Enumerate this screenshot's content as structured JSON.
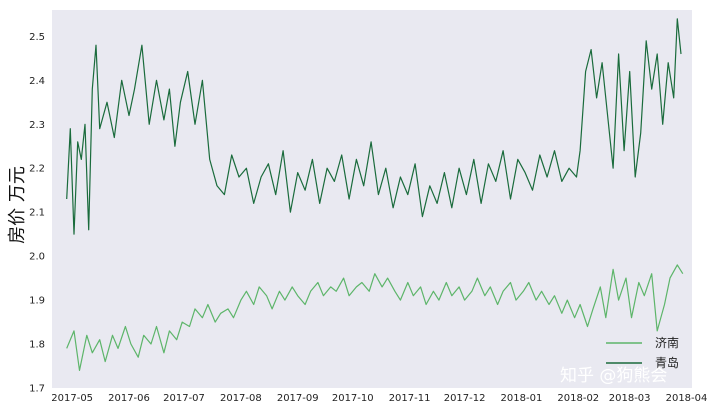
{
  "chart_data": {
    "type": "line",
    "ylabel": "房价 万元",
    "ylim": [
      1.7,
      2.56
    ],
    "yticks": [
      "1.7",
      "1.8",
      "1.9",
      "2.0",
      "2.1",
      "2.2",
      "2.3",
      "2.4",
      "2.5"
    ],
    "xlim": [
      "2017-04-20",
      "2018-04-04"
    ],
    "xticks": [
      "2017-05",
      "2017-06",
      "2017-07",
      "2017-08",
      "2017-09",
      "2017-10",
      "2017-11",
      "2017-12",
      "2018-01",
      "2018-02",
      "2018-03",
      "2018-04"
    ],
    "grid": false,
    "legend_position": "bottom-right",
    "colors": {
      "background": "#e9e9f1",
      "jinan": "#5db56a",
      "qingdao": "#1a6b3c"
    },
    "series": [
      {
        "name": "济南",
        "color": "#5db56a",
        "x": [
          "2017-04-28",
          "2017-05-02",
          "2017-05-05",
          "2017-05-09",
          "2017-05-12",
          "2017-05-16",
          "2017-05-19",
          "2017-05-23",
          "2017-05-26",
          "2017-05-30",
          "2017-06-02",
          "2017-06-06",
          "2017-06-09",
          "2017-06-13",
          "2017-06-16",
          "2017-06-20",
          "2017-06-23",
          "2017-06-27",
          "2017-06-30",
          "2017-07-04",
          "2017-07-07",
          "2017-07-11",
          "2017-07-14",
          "2017-07-18",
          "2017-07-21",
          "2017-07-25",
          "2017-07-28",
          "2017-08-01",
          "2017-08-04",
          "2017-08-08",
          "2017-08-11",
          "2017-08-15",
          "2017-08-18",
          "2017-08-22",
          "2017-08-25",
          "2017-08-29",
          "2017-09-01",
          "2017-09-05",
          "2017-09-08",
          "2017-09-12",
          "2017-09-15",
          "2017-09-19",
          "2017-09-22",
          "2017-09-26",
          "2017-09-29",
          "2017-10-03",
          "2017-10-06",
          "2017-10-10",
          "2017-10-13",
          "2017-10-17",
          "2017-10-20",
          "2017-10-24",
          "2017-10-27",
          "2017-10-31",
          "2017-11-03",
          "2017-11-07",
          "2017-11-10",
          "2017-11-14",
          "2017-11-17",
          "2017-11-21",
          "2017-11-24",
          "2017-11-28",
          "2017-12-01",
          "2017-12-05",
          "2017-12-08",
          "2017-12-12",
          "2017-12-15",
          "2017-12-19",
          "2017-12-22",
          "2017-12-26",
          "2017-12-29",
          "2018-01-02",
          "2018-01-05",
          "2018-01-09",
          "2018-01-12",
          "2018-01-16",
          "2018-01-19",
          "2018-01-23",
          "2018-01-26",
          "2018-01-30",
          "2018-02-02",
          "2018-02-06",
          "2018-02-09",
          "2018-02-13",
          "2018-02-16",
          "2018-02-20",
          "2018-02-23",
          "2018-02-27",
          "2018-03-02",
          "2018-03-06",
          "2018-03-09",
          "2018-03-13",
          "2018-03-16",
          "2018-03-20",
          "2018-03-23",
          "2018-03-27",
          "2018-03-30"
        ],
        "values": [
          1.79,
          1.83,
          1.74,
          1.82,
          1.78,
          1.81,
          1.76,
          1.82,
          1.79,
          1.84,
          1.8,
          1.77,
          1.82,
          1.8,
          1.84,
          1.78,
          1.83,
          1.81,
          1.85,
          1.84,
          1.88,
          1.86,
          1.89,
          1.85,
          1.87,
          1.88,
          1.86,
          1.9,
          1.92,
          1.89,
          1.93,
          1.91,
          1.88,
          1.92,
          1.9,
          1.93,
          1.91,
          1.89,
          1.92,
          1.94,
          1.91,
          1.93,
          1.92,
          1.95,
          1.91,
          1.93,
          1.94,
          1.92,
          1.96,
          1.93,
          1.95,
          1.92,
          1.9,
          1.94,
          1.91,
          1.93,
          1.89,
          1.92,
          1.9,
          1.94,
          1.91,
          1.93,
          1.9,
          1.92,
          1.95,
          1.91,
          1.93,
          1.89,
          1.92,
          1.94,
          1.9,
          1.92,
          1.94,
          1.9,
          1.92,
          1.89,
          1.91,
          1.87,
          1.9,
          1.86,
          1.89,
          1.84,
          1.88,
          1.93,
          1.86,
          1.97,
          1.9,
          1.95,
          1.86,
          1.94,
          1.91,
          1.96,
          1.83,
          1.89,
          1.95,
          1.98,
          1.96
        ]
      },
      {
        "name": "青岛",
        "color": "#1a6b3c",
        "x": [
          "2017-04-28",
          "2017-04-30",
          "2017-05-02",
          "2017-05-04",
          "2017-05-06",
          "2017-05-08",
          "2017-05-10",
          "2017-05-12",
          "2017-05-14",
          "2017-05-16",
          "2017-05-20",
          "2017-05-24",
          "2017-05-28",
          "2017-06-01",
          "2017-06-04",
          "2017-06-08",
          "2017-06-12",
          "2017-06-16",
          "2017-06-20",
          "2017-06-23",
          "2017-06-26",
          "2017-06-29",
          "2017-07-03",
          "2017-07-07",
          "2017-07-11",
          "2017-07-15",
          "2017-07-19",
          "2017-07-23",
          "2017-07-27",
          "2017-07-31",
          "2017-08-04",
          "2017-08-08",
          "2017-08-12",
          "2017-08-16",
          "2017-08-20",
          "2017-08-24",
          "2017-08-28",
          "2017-09-01",
          "2017-09-05",
          "2017-09-09",
          "2017-09-13",
          "2017-09-17",
          "2017-09-21",
          "2017-09-25",
          "2017-09-29",
          "2017-10-03",
          "2017-10-07",
          "2017-10-11",
          "2017-10-15",
          "2017-10-19",
          "2017-10-23",
          "2017-10-27",
          "2017-10-31",
          "2017-11-04",
          "2017-11-08",
          "2017-11-12",
          "2017-11-16",
          "2017-11-20",
          "2017-11-24",
          "2017-11-28",
          "2017-12-02",
          "2017-12-06",
          "2017-12-10",
          "2017-12-14",
          "2017-12-18",
          "2017-12-22",
          "2017-12-26",
          "2017-12-30",
          "2018-01-03",
          "2018-01-07",
          "2018-01-11",
          "2018-01-15",
          "2018-01-19",
          "2018-01-23",
          "2018-01-27",
          "2018-01-31",
          "2018-02-02",
          "2018-02-05",
          "2018-02-08",
          "2018-02-11",
          "2018-02-14",
          "2018-02-17",
          "2018-02-20",
          "2018-02-23",
          "2018-02-26",
          "2018-03-01",
          "2018-03-04",
          "2018-03-07",
          "2018-03-10",
          "2018-03-13",
          "2018-03-16",
          "2018-03-19",
          "2018-03-22",
          "2018-03-25",
          "2018-03-27",
          "2018-03-29"
        ],
        "values": [
          2.13,
          2.29,
          2.05,
          2.26,
          2.22,
          2.3,
          2.06,
          2.38,
          2.48,
          2.29,
          2.35,
          2.27,
          2.4,
          2.32,
          2.38,
          2.48,
          2.3,
          2.4,
          2.31,
          2.38,
          2.25,
          2.35,
          2.42,
          2.3,
          2.4,
          2.22,
          2.16,
          2.14,
          2.23,
          2.18,
          2.2,
          2.12,
          2.18,
          2.21,
          2.14,
          2.24,
          2.1,
          2.19,
          2.15,
          2.22,
          2.12,
          2.2,
          2.17,
          2.23,
          2.13,
          2.22,
          2.16,
          2.26,
          2.14,
          2.2,
          2.11,
          2.18,
          2.14,
          2.21,
          2.09,
          2.16,
          2.12,
          2.19,
          2.11,
          2.2,
          2.14,
          2.22,
          2.12,
          2.21,
          2.17,
          2.24,
          2.13,
          2.22,
          2.19,
          2.15,
          2.23,
          2.18,
          2.24,
          2.17,
          2.2,
          2.18,
          2.24,
          2.42,
          2.47,
          2.36,
          2.44,
          2.32,
          2.2,
          2.46,
          2.24,
          2.42,
          2.18,
          2.28,
          2.49,
          2.38,
          2.46,
          2.3,
          2.44,
          2.36,
          2.54,
          2.46
        ]
      }
    ],
    "legend": {
      "items": [
        "济南",
        "青岛"
      ]
    }
  },
  "watermark": "知乎 @狗熊会"
}
